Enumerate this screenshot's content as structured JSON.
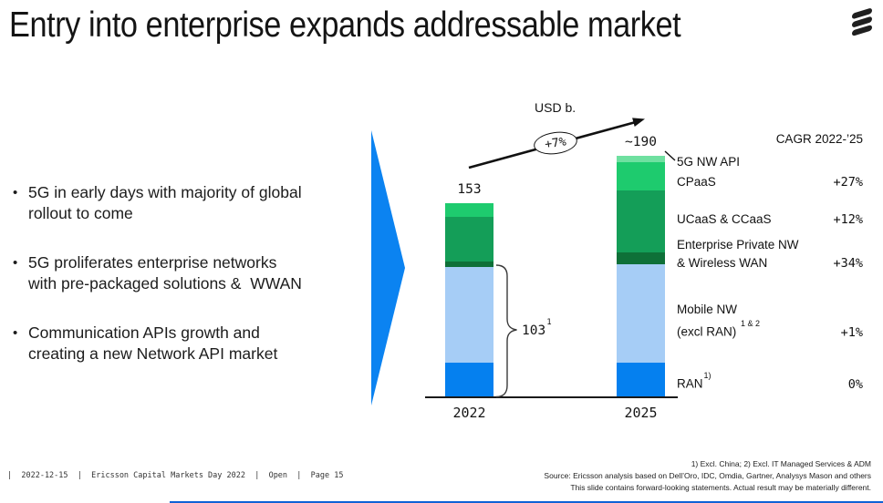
{
  "slide": {
    "title": "Entry into enterprise expands addressable market"
  },
  "bullets": [
    {
      "line1": "5G in early days with majority of global",
      "line2": "rollout to come"
    },
    {
      "line1": "5G proliferates enterprise networks",
      "line2": "with pre-packaged solutions &  WWAN"
    },
    {
      "line1": "Communication APIs growth and",
      "line2": "creating a new Network API market"
    }
  ],
  "chart_data": {
    "type": "bar",
    "stacked": true,
    "unit_label": "USD b.",
    "growth_label": "+7%",
    "categories": [
      "2022",
      "2025"
    ],
    "totals": [
      153,
      190
    ],
    "totals_label": [
      "153",
      "~190"
    ],
    "series": [
      {
        "name": "RAN",
        "footnote": "1)",
        "color": "#0580ef",
        "values": [
          28,
          28
        ],
        "cagr": "0%"
      },
      {
        "name": "Mobile NW (excl RAN)",
        "footnote": "1 & 2",
        "color": "#a6cdf6",
        "values": [
          75,
          77
        ],
        "cagr": "+1%"
      },
      {
        "name": "Enterprise Private NW & Wireless WAN",
        "color": "#0e7038",
        "values": [
          4,
          9
        ],
        "cagr": "+34%"
      },
      {
        "name": "UCaaS & CCaaS",
        "color": "#149e58",
        "values": [
          35,
          49
        ],
        "cagr": "+12%"
      },
      {
        "name": "CPaaS",
        "color": "#1ecb6e",
        "values": [
          11,
          22
        ],
        "cagr": "+27%"
      },
      {
        "name": "5G NW API",
        "color": "#6fe0a0",
        "values": [
          0,
          5
        ],
        "cagr": ""
      }
    ],
    "bracket": {
      "label": "103",
      "superscript": "1",
      "value": 103
    },
    "cagr_header": "CAGR 2022-’25",
    "ylim": [
      0,
      200
    ],
    "legend_position": "right"
  },
  "legend": {
    "rows": [
      {
        "line1": "5G NW API",
        "cagr": ""
      },
      {
        "line1": "CPaaS",
        "cagr": "+27%"
      },
      {
        "line1": "UCaaS & CCaaS",
        "cagr": "+12%"
      },
      {
        "line1": "Enterprise Private NW",
        "line2": "& Wireless WAN",
        "cagr": "+34%"
      },
      {
        "line1": "Mobile NW",
        "line2": "(excl RAN) ",
        "sup2": "1 & 2",
        "cagr": "+1%"
      },
      {
        "line1": "RAN",
        "sup1": "1)",
        "cagr": "0%"
      }
    ]
  },
  "footer": {
    "left": "|  2022-12-15  |  Ericsson Capital Markets Day 2022  |  Open  |  Page 15"
  },
  "footnotes": [
    "1) Excl. China; 2) Excl. IT Managed Services & ADM",
    "Source: Ericsson analysis based on Dell’Oro, IDC, Omdia, Gartner, Analysys Mason and others",
    "This slide contains forward-looking statements. Actual result may be materially different."
  ],
  "colors": {
    "accent_blue": "#0580ef",
    "light_blue": "#a6cdf6",
    "green_dark": "#0e7038",
    "green": "#149e58",
    "green_bright": "#1ecb6e",
    "mint": "#6fe0a0",
    "bottom_rule": "#0f62d6",
    "ink": "#141414"
  }
}
